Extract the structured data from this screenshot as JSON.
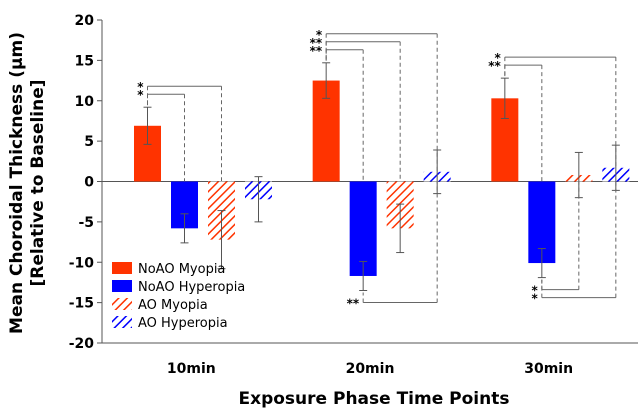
{
  "chart_data": {
    "type": "bar",
    "title": "",
    "xlabel": "Exposure Phase Time Points",
    "ylabel_line1": "Mean Choroidal Thickness (µm)",
    "ylabel_line2": "[Relative to Baseline]",
    "ylim": [
      -20,
      20
    ],
    "yticks": [
      20,
      15,
      10,
      5,
      0,
      -5,
      -10,
      -15,
      -20
    ],
    "categories": [
      "10min",
      "20min",
      "30min"
    ],
    "series": [
      {
        "name": "NoAO Myopia",
        "color": "#ff3300",
        "pattern": "solid",
        "values": [
          6.9,
          12.5,
          10.3
        ],
        "errors": [
          2.3,
          2.2,
          2.5
        ]
      },
      {
        "name": "NoAO Hyperopia",
        "color": "#0000ff",
        "pattern": "solid",
        "values": [
          -5.8,
          -11.7,
          -10.1
        ],
        "errors": [
          1.8,
          1.8,
          1.8
        ]
      },
      {
        "name": "AO Myopia",
        "color": "#ff3300",
        "pattern": "hatched",
        "values": [
          -7.2,
          -5.8,
          0.8
        ],
        "errors": [
          3.6,
          3.0,
          2.8
        ]
      },
      {
        "name": "AO Hyperopia",
        "color": "#0000ff",
        "pattern": "hatched",
        "values": [
          -2.2,
          1.2,
          1.7
        ],
        "errors": [
          2.8,
          2.7,
          2.8
        ]
      }
    ],
    "legend_position": "bottom-left",
    "grid": false,
    "significance": [
      {
        "group": 0,
        "from": 0,
        "to": 1,
        "label": "*",
        "side": "top"
      },
      {
        "group": 0,
        "from": 0,
        "to": 2,
        "label": "*",
        "side": "top"
      },
      {
        "group": 1,
        "from": 0,
        "to": 1,
        "label": "**",
        "side": "top"
      },
      {
        "group": 1,
        "from": 0,
        "to": 2,
        "label": "**",
        "side": "top"
      },
      {
        "group": 1,
        "from": 0,
        "to": 3,
        "label": "*",
        "side": "top"
      },
      {
        "group": 1,
        "from": 1,
        "to": 3,
        "label": "**",
        "side": "bottom"
      },
      {
        "group": 2,
        "from": 0,
        "to": 1,
        "label": "**",
        "side": "top"
      },
      {
        "group": 2,
        "from": 0,
        "to": 3,
        "label": "*",
        "side": "top"
      },
      {
        "group": 2,
        "from": 1,
        "to": 2,
        "label": "*",
        "side": "bottom"
      },
      {
        "group": 2,
        "from": 1,
        "to": 3,
        "label": "*",
        "side": "bottom"
      }
    ]
  }
}
